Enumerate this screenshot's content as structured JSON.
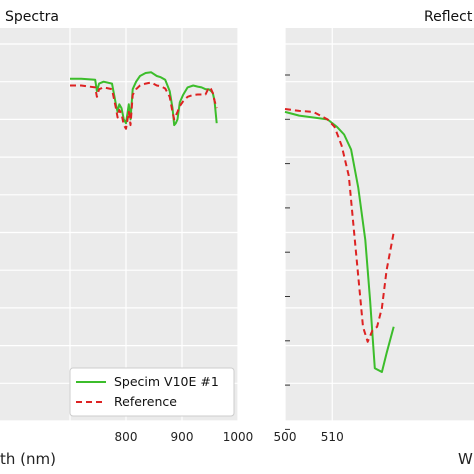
{
  "chart_data": [
    {
      "type": "line",
      "title": "Spectra",
      "xlabel": "th (nm)",
      "ylabel": "",
      "xlim": [
        700,
        1000
      ],
      "ylim": [
        0,
        1.0
      ],
      "xticks": [
        800,
        900,
        1000
      ],
      "grid": true,
      "legend": {
        "placement": "bottom-right"
      },
      "series": [
        {
          "name": "Specim V10E #1",
          "color": "#3cbd2b",
          "style": "solid",
          "x": [
            700,
            720,
            745,
            748,
            752,
            760,
            775,
            782,
            785,
            788,
            792,
            796,
            800,
            805,
            808,
            812,
            818,
            825,
            835,
            845,
            855,
            862,
            870,
            878,
            883,
            886,
            889,
            892,
            896,
            902,
            910,
            920,
            928,
            935,
            942,
            948,
            952,
            955,
            958,
            962
          ],
          "y": [
            0.908,
            0.908,
            0.905,
            0.875,
            0.895,
            0.9,
            0.895,
            0.84,
            0.82,
            0.84,
            0.83,
            0.8,
            0.79,
            0.84,
            0.8,
            0.88,
            0.9,
            0.915,
            0.923,
            0.925,
            0.915,
            0.912,
            0.905,
            0.875,
            0.83,
            0.785,
            0.79,
            0.8,
            0.845,
            0.865,
            0.885,
            0.89,
            0.887,
            0.885,
            0.88,
            0.88,
            0.875,
            0.87,
            0.85,
            0.79
          ]
        },
        {
          "name": "Reference",
          "color": "#dd2222",
          "style": "dashed",
          "x": [
            700,
            720,
            745,
            748,
            752,
            760,
            775,
            782,
            785,
            788,
            792,
            796,
            800,
            805,
            808,
            812,
            818,
            825,
            835,
            845,
            855,
            862,
            870,
            878,
            883,
            886,
            889,
            892,
            896,
            902,
            910,
            920,
            928,
            935,
            942,
            948,
            952,
            955,
            958,
            962
          ],
          "y": [
            0.89,
            0.89,
            0.885,
            0.86,
            0.88,
            0.885,
            0.88,
            0.83,
            0.805,
            0.825,
            0.815,
            0.785,
            0.775,
            0.82,
            0.785,
            0.865,
            0.88,
            0.89,
            0.895,
            0.898,
            0.89,
            0.888,
            0.882,
            0.86,
            0.82,
            0.8,
            0.81,
            0.82,
            0.835,
            0.848,
            0.86,
            0.865,
            0.866,
            0.866,
            0.866,
            0.885,
            0.88,
            0.87,
            0.85,
            0.83
          ]
        }
      ]
    },
    {
      "type": "line",
      "title": "Reflect",
      "xlabel": "W",
      "ylabel": "",
      "xlim": [
        500,
        540
      ],
      "ylim": [
        0,
        1.0
      ],
      "xticks": [
        500,
        510
      ],
      "grid": true,
      "series": [
        {
          "name": "Specim V10E #1",
          "color": "#3cbd2b",
          "style": "solid",
          "x": [
            500,
            503,
            506,
            509,
            511,
            512.5,
            514,
            515.5,
            517,
            518,
            519,
            520.5,
            521.5,
            523
          ],
          "y": [
            0.82,
            0.81,
            0.805,
            0.8,
            0.78,
            0.76,
            0.72,
            0.62,
            0.48,
            0.32,
            0.14,
            0.13,
            0.18,
            0.25
          ]
        },
        {
          "name": "Reference",
          "color": "#dd2222",
          "style": "dashed",
          "x": [
            500,
            503,
            506,
            509,
            510.5,
            512,
            513.5,
            515,
            516.5,
            517.5,
            518.5,
            519.5,
            520.5,
            521.5,
            523
          ],
          "y": [
            0.8275,
            0.8225,
            0.82,
            0.8,
            0.78,
            0.73,
            0.65,
            0.45,
            0.25,
            0.21,
            0.24,
            0.25,
            0.3,
            0.4,
            0.5
          ]
        }
      ]
    }
  ]
}
